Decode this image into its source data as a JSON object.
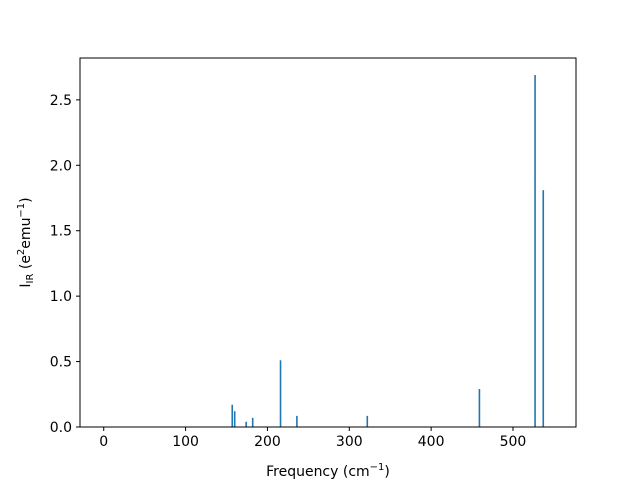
{
  "chart_data": {
    "type": "bar",
    "xlabel": [
      {
        "text": "Frequency (cm"
      },
      {
        "text": "−1",
        "script": "super"
      },
      {
        "text": ")"
      }
    ],
    "ylabel": [
      {
        "text": "I"
      },
      {
        "text": "IR",
        "script": "sub"
      },
      {
        "text": " (e"
      },
      {
        "text": "2",
        "script": "super"
      },
      {
        "text": "emu"
      },
      {
        "text": "−1",
        "script": "super"
      },
      {
        "text": ")"
      }
    ],
    "x": [
      157,
      160,
      174,
      182,
      216,
      236,
      322,
      459,
      527,
      537
    ],
    "values": [
      0.17,
      0.12,
      0.04,
      0.07,
      0.51,
      0.085,
      0.085,
      0.29,
      2.69,
      1.81
    ],
    "color": "#1f77b4",
    "xlim": [
      -29,
      577
    ],
    "xticks": [
      0,
      100,
      200,
      300,
      400,
      500
    ],
    "ylim": [
      0,
      2.82
    ],
    "yticks": [
      {
        "value": 0,
        "label": "0.0"
      },
      0.5,
      {
        "value": 1,
        "label": "1.0"
      },
      1.5,
      {
        "value": 2,
        "label": "2.0"
      },
      2.5
    ]
  }
}
